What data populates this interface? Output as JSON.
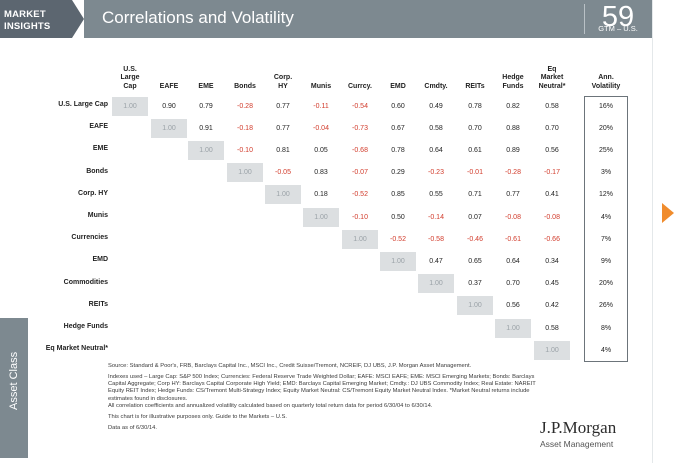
{
  "header": {
    "section_line1": "MARKET",
    "section_line2": "INSIGHTS",
    "title": "Correlations and Volatility",
    "page_number": "59",
    "page_sub": "GTM – U.S."
  },
  "side_tab": "Asset Class",
  "table": {
    "columns": [
      "U.S.\nLarge\nCap",
      "EAFE",
      "EME",
      "Bonds",
      "Corp.\nHY",
      "Munis",
      "Currcy.",
      "EMD",
      "Cmdty.",
      "REITs",
      "Hedge\nFunds",
      "Eq\nMarket\nNeutral*"
    ],
    "vol_header": "Ann.\nVolatility",
    "rows": [
      {
        "label": "U.S. Large Cap",
        "values": [
          "1.00",
          "0.90",
          "0.79",
          "-0.28",
          "0.77",
          "-0.11",
          "-0.54",
          "0.60",
          "0.49",
          "0.78",
          "0.82",
          "0.58"
        ],
        "vol": "16%"
      },
      {
        "label": "EAFE",
        "values": [
          "",
          "1.00",
          "0.91",
          "-0.18",
          "0.77",
          "-0.04",
          "-0.73",
          "0.67",
          "0.58",
          "0.70",
          "0.88",
          "0.70"
        ],
        "vol": "20%"
      },
      {
        "label": "EME",
        "values": [
          "",
          "",
          "1.00",
          "-0.10",
          "0.81",
          "0.05",
          "-0.68",
          "0.78",
          "0.64",
          "0.61",
          "0.89",
          "0.56"
        ],
        "vol": "25%"
      },
      {
        "label": "Bonds",
        "values": [
          "",
          "",
          "",
          "1.00",
          "-0.05",
          "0.83",
          "-0.07",
          "0.29",
          "-0.23",
          "-0.01",
          "-0.28",
          "-0.17"
        ],
        "vol": "3%"
      },
      {
        "label": "Corp. HY",
        "values": [
          "",
          "",
          "",
          "",
          "1.00",
          "0.18",
          "-0.52",
          "0.85",
          "0.55",
          "0.71",
          "0.77",
          "0.41"
        ],
        "vol": "12%"
      },
      {
        "label": "Munis",
        "values": [
          "",
          "",
          "",
          "",
          "",
          "1.00",
          "-0.10",
          "0.50",
          "-0.14",
          "0.07",
          "-0.08",
          "-0.08"
        ],
        "vol": "4%"
      },
      {
        "label": "Currencies",
        "values": [
          "",
          "",
          "",
          "",
          "",
          "",
          "1.00",
          "-0.52",
          "-0.58",
          "-0.46",
          "-0.61",
          "-0.66"
        ],
        "vol": "7%"
      },
      {
        "label": "EMD",
        "values": [
          "",
          "",
          "",
          "",
          "",
          "",
          "",
          "1.00",
          "0.47",
          "0.65",
          "0.64",
          "0.34"
        ],
        "vol": "9%"
      },
      {
        "label": "Commodities",
        "values": [
          "",
          "",
          "",
          "",
          "",
          "",
          "",
          "",
          "1.00",
          "0.37",
          "0.70",
          "0.45"
        ],
        "vol": "20%"
      },
      {
        "label": "REITs",
        "values": [
          "",
          "",
          "",
          "",
          "",
          "",
          "",
          "",
          "",
          "1.00",
          "0.56",
          "0.42"
        ],
        "vol": "26%"
      },
      {
        "label": "Hedge Funds",
        "values": [
          "",
          "",
          "",
          "",
          "",
          "",
          "",
          "",
          "",
          "",
          "1.00",
          "0.58"
        ],
        "vol": "8%"
      },
      {
        "label": "Eq Market Neutral*",
        "values": [
          "",
          "",
          "",
          "",
          "",
          "",
          "",
          "",
          "",
          "",
          "",
          "1.00"
        ],
        "vol": "4%"
      }
    ]
  },
  "footnotes": {
    "source": "Source: Standard & Poor's, FRB, Barclays Capital Inc., MSCI Inc., Credit Suisse/Tremont, NCREIF, DJ UBS, J.P. Morgan Asset Management.",
    "indexes": "Indexes used – Large Cap: S&P 500 Index; Currencies: Federal Reserve Trade Weighted Dollar; EAFE: MSCI EAFE; EME: MSCI Emerging Markets; Bonds: Barclays Capital Aggregate; Corp HY: Barclays Capital Corporate High Yield; EMD: Barclays Capital Emerging Market; Cmdty.: DJ UBS Commodity Index; Real Estate: NAREIT Equity REIT Index; Hedge Funds: CS/Tremont Multi-Strategy Index; Equity Market Neutral: CS/Tremont Equity Market Neutral Index. *Market Neutral returns include estimates found in disclosures.",
    "calc": "All correlation coefficients and annualized volatility calculated based on quarterly total return data for period 6/30/04 to 6/30/14.",
    "illustrative": "This chart is for illustrative purposes only. Guide to the Markets – U.S.",
    "data_as_of": "Data as of 6/30/14."
  },
  "logo": {
    "name": "J.P.Morgan",
    "sub": "Asset Management"
  }
}
